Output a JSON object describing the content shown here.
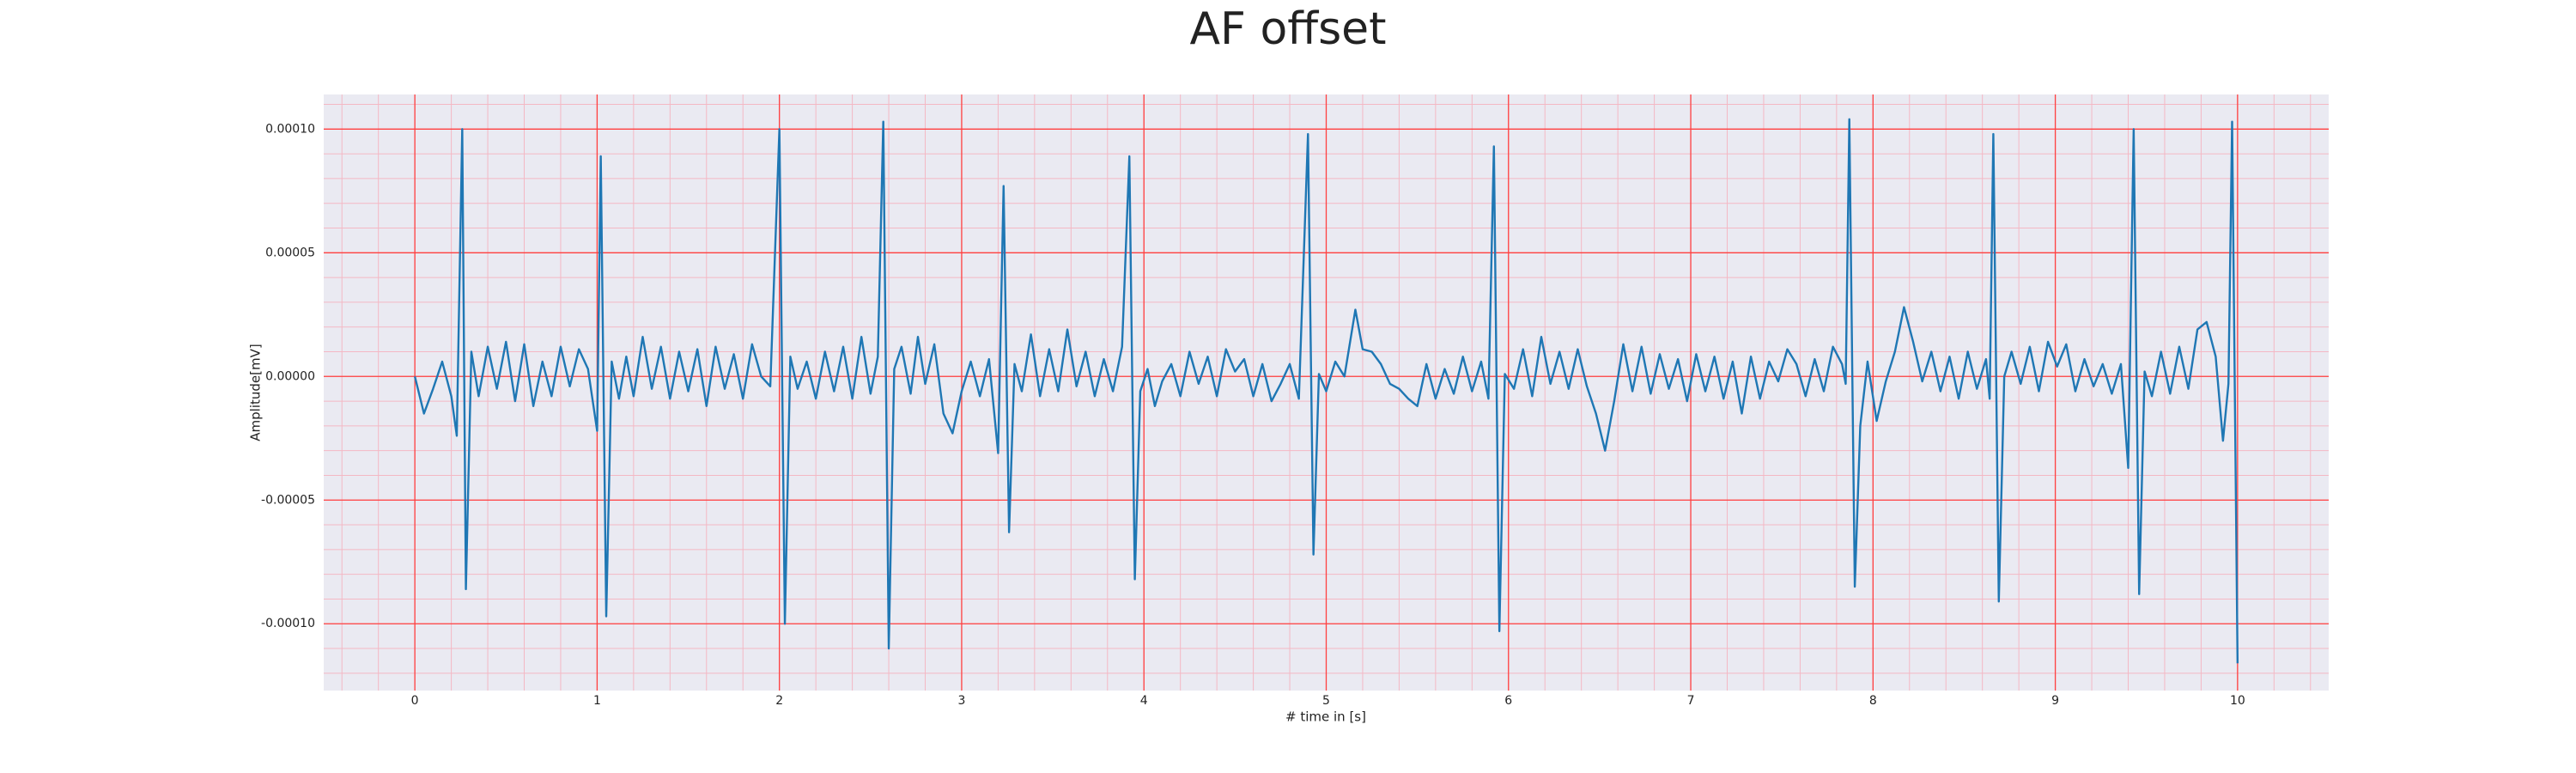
{
  "chart_data": {
    "type": "line",
    "title": "AF offset",
    "x_label": "# time in [s]",
    "y_label": "Amplitude[mV]",
    "x": [
      0,
      0.05,
      0.1,
      0.15,
      0.2,
      0.23,
      0.26,
      0.28,
      0.31,
      0.35,
      0.4,
      0.45,
      0.5,
      0.55,
      0.6,
      0.65,
      0.7,
      0.75,
      0.8,
      0.85,
      0.9,
      0.95,
      1,
      1.02,
      1.05,
      1.08,
      1.12,
      1.16,
      1.2,
      1.25,
      1.3,
      1.35,
      1.4,
      1.45,
      1.5,
      1.55,
      1.6,
      1.65,
      1.7,
      1.75,
      1.8,
      1.85,
      1.9,
      1.95,
      2,
      2.03,
      2.06,
      2.1,
      2.15,
      2.2,
      2.25,
      2.3,
      2.35,
      2.4,
      2.45,
      2.5,
      2.54,
      2.57,
      2.6,
      2.63,
      2.67,
      2.72,
      2.76,
      2.8,
      2.85,
      2.9,
      2.95,
      3,
      3.05,
      3.1,
      3.15,
      3.2,
      3.23,
      3.26,
      3.29,
      3.33,
      3.38,
      3.43,
      3.48,
      3.53,
      3.58,
      3.63,
      3.68,
      3.73,
      3.78,
      3.83,
      3.88,
      3.92,
      3.95,
      3.98,
      4.02,
      4.06,
      4.1,
      4.15,
      4.2,
      4.25,
      4.3,
      4.35,
      4.4,
      4.45,
      4.5,
      4.55,
      4.6,
      4.65,
      4.7,
      4.75,
      4.8,
      4.85,
      4.9,
      4.93,
      4.96,
      5,
      5.05,
      5.1,
      5.16,
      5.2,
      5.25,
      5.3,
      5.35,
      5.4,
      5.45,
      5.5,
      5.55,
      5.6,
      5.65,
      5.7,
      5.75,
      5.8,
      5.85,
      5.89,
      5.92,
      5.95,
      5.98,
      6.03,
      6.08,
      6.13,
      6.18,
      6.23,
      6.28,
      6.33,
      6.38,
      6.43,
      6.48,
      6.53,
      6.58,
      6.63,
      6.68,
      6.73,
      6.78,
      6.83,
      6.88,
      6.93,
      6.98,
      7.03,
      7.08,
      7.13,
      7.18,
      7.23,
      7.28,
      7.33,
      7.38,
      7.43,
      7.48,
      7.53,
      7.58,
      7.63,
      7.68,
      7.73,
      7.78,
      7.83,
      7.85,
      7.87,
      7.9,
      7.93,
      7.97,
      8.02,
      8.07,
      8.12,
      8.17,
      8.22,
      8.27,
      8.32,
      8.37,
      8.42,
      8.47,
      8.52,
      8.57,
      8.62,
      8.64,
      8.66,
      8.69,
      8.72,
      8.76,
      8.81,
      8.86,
      8.91,
      8.96,
      9.01,
      9.06,
      9.11,
      9.16,
      9.21,
      9.26,
      9.31,
      9.36,
      9.4,
      9.43,
      9.46,
      9.49,
      9.53,
      9.58,
      9.63,
      9.68,
      9.73,
      9.78,
      9.83,
      9.88,
      9.92,
      9.95,
      9.97,
      10
    ],
    "series": [
      {
        "color": "#1f77b4",
        "values": [
          0,
          -1.5e-05,
          -5e-06,
          6e-06,
          -8e-06,
          -2.4e-05,
          0.0001,
          -8.6e-05,
          1e-05,
          -8e-06,
          1.2e-05,
          -5e-06,
          1.4e-05,
          -1e-05,
          1.3e-05,
          -1.2e-05,
          6e-06,
          -8e-06,
          1.2e-05,
          -4e-06,
          1.1e-05,
          3e-06,
          -2.2e-05,
          8.9e-05,
          -9.7e-05,
          6e-06,
          -9e-06,
          8e-06,
          -8e-06,
          1.6e-05,
          -5e-06,
          1.2e-05,
          -9e-06,
          1e-05,
          -6e-06,
          1.1e-05,
          -1.2e-05,
          1.2e-05,
          -5e-06,
          9e-06,
          -9e-06,
          1.3e-05,
          0,
          -4e-06,
          0.0001,
          -0.0001,
          8e-06,
          -5e-06,
          6e-06,
          -9e-06,
          1e-05,
          -6e-06,
          1.2e-05,
          -9e-06,
          1.6e-05,
          -7e-06,
          8e-06,
          0.000103,
          -0.00011,
          3e-06,
          1.2e-05,
          -7e-06,
          1.6e-05,
          -3e-06,
          1.3e-05,
          -1.5e-05,
          -2.3e-05,
          -6e-06,
          6e-06,
          -8e-06,
          7e-06,
          -3.1e-05,
          7.7e-05,
          -6.3e-05,
          5e-06,
          -6e-06,
          1.7e-05,
          -8e-06,
          1.1e-05,
          -6e-06,
          1.9e-05,
          -4e-06,
          1e-05,
          -8e-06,
          7e-06,
          -6e-06,
          1.2e-05,
          8.9e-05,
          -8.2e-05,
          -6e-06,
          3e-06,
          -1.2e-05,
          -2e-06,
          5e-06,
          -8e-06,
          1e-05,
          -3e-06,
          8e-06,
          -8e-06,
          1.1e-05,
          2e-06,
          7e-06,
          -8e-06,
          5e-06,
          -1e-05,
          -3e-06,
          5e-06,
          -9e-06,
          9.8e-05,
          -7.2e-05,
          1e-06,
          -6e-06,
          6e-06,
          0,
          2.7e-05,
          1.1e-05,
          1e-05,
          5e-06,
          -3e-06,
          -5e-06,
          -9e-06,
          -1.2e-05,
          5e-06,
          -9e-06,
          3e-06,
          -7e-06,
          8e-06,
          -6e-06,
          6e-06,
          -9e-06,
          9.3e-05,
          -0.000103,
          1e-06,
          -5e-06,
          1.1e-05,
          -8e-06,
          1.6e-05,
          -3e-06,
          1e-05,
          -5e-06,
          1.1e-05,
          -4e-06,
          -1.5e-05,
          -3e-05,
          -1e-05,
          1.3e-05,
          -6e-06,
          1.2e-05,
          -7e-06,
          9e-06,
          -5e-06,
          7e-06,
          -1e-05,
          9e-06,
          -6e-06,
          8e-06,
          -9e-06,
          6e-06,
          -1.5e-05,
          8e-06,
          -9e-06,
          6e-06,
          -2e-06,
          1.1e-05,
          5e-06,
          -8e-06,
          7e-06,
          -6e-06,
          1.2e-05,
          5e-06,
          -3e-06,
          0.000104,
          -8.5e-05,
          -2e-05,
          6e-06,
          -1.8e-05,
          -2e-06,
          1e-05,
          2.8e-05,
          1.4e-05,
          -2e-06,
          1e-05,
          -6e-06,
          8e-06,
          -9e-06,
          1e-05,
          -5e-06,
          7e-06,
          -9e-06,
          9.8e-05,
          -9.1e-05,
          0,
          1e-05,
          -3e-06,
          1.2e-05,
          -6e-06,
          1.4e-05,
          4e-06,
          1.3e-05,
          -6e-06,
          7e-06,
          -4e-06,
          5e-06,
          -7e-06,
          5e-06,
          -3.7e-05,
          0.0001,
          -8.8e-05,
          2e-06,
          -8e-06,
          1e-05,
          -7e-06,
          1.2e-05,
          -5e-06,
          1.9e-05,
          2.2e-05,
          8e-06,
          -2.6e-05,
          -3e-06,
          0.000103,
          -0.000116
        ]
      }
    ],
    "xlim": [
      -0.5,
      10.5
    ],
    "ylim": [
      -0.000127,
      0.000114
    ],
    "xticks": [
      0,
      1,
      2,
      3,
      4,
      5,
      6,
      7,
      8,
      9,
      10
    ],
    "yticks": [
      {
        "value": -0.0001,
        "label": "-0.00010"
      },
      {
        "value": -5e-05,
        "label": "-0.00005"
      },
      {
        "value": 0,
        "label": "0.00000"
      },
      {
        "value": 5e-05,
        "label": "0.00005"
      },
      {
        "value": 0.0001,
        "label": "0.00010"
      }
    ],
    "grid": true,
    "grid_color": "#ff4040",
    "minor_grid": {
      "x_step": 0.2,
      "y_step": 1e-05,
      "color": "#f4b8c4"
    },
    "background": "#eaeaf2"
  }
}
